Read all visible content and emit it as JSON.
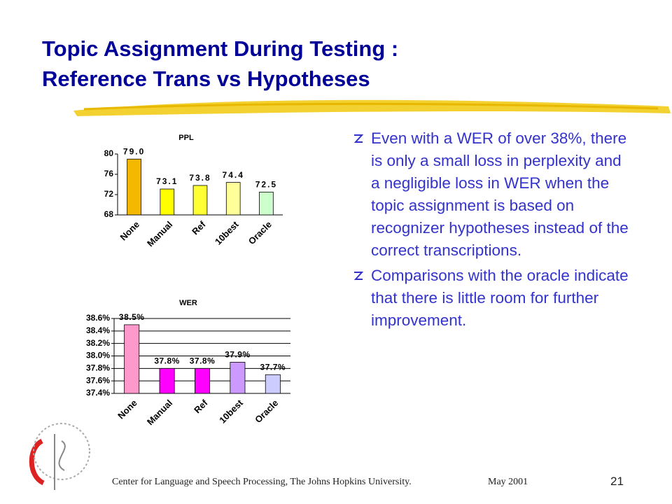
{
  "slide": {
    "title_lines": [
      "Topic Assignment During Testing :",
      "Reference Trans vs Hypotheses"
    ],
    "bullets": [
      "Even with a WER of over 38%, there is only a small loss in perplexity and a negligible loss in WER when the topic assignment is based on recognizer hypotheses instead of the correct transcriptions.",
      "Comparisons with the oracle indicate that there is little room for further improvement."
    ],
    "footer": {
      "affiliation": "Center for Language and Speech Processing, The Johns Hopkins University.",
      "date": "May 2001",
      "page": "21"
    }
  },
  "chart_data": [
    {
      "type": "bar",
      "title": "PPL",
      "categories": [
        "None",
        "Manual",
        "Ref",
        "10best",
        "Oracle"
      ],
      "values": [
        79.0,
        73.1,
        73.8,
        74.4,
        72.5
      ],
      "value_labels": [
        "79.0",
        "73.1",
        "73.8",
        "74.4",
        "72.5"
      ],
      "colors": [
        "#f5b800",
        "#ffff00",
        "#ffff33",
        "#ffff99",
        "#ccffcc"
      ],
      "ylim": [
        68,
        80
      ],
      "yticks": [
        68,
        72,
        76,
        80
      ],
      "grid": false
    },
    {
      "type": "bar",
      "title": "WER",
      "categories": [
        "None",
        "Manual",
        "Ref",
        "10best",
        "Oracle"
      ],
      "values": [
        38.5,
        37.8,
        37.8,
        37.9,
        37.7
      ],
      "value_labels": [
        "38.5%",
        "37.8%",
        "37.8%",
        "37.9%",
        "37.7%"
      ],
      "colors": [
        "#ff99cc",
        "#ff00ff",
        "#ff00ff",
        "#cc99ff",
        "#ccccff"
      ],
      "ylim": [
        37.4,
        38.6
      ],
      "yticks": [
        {
          "value": 37.4,
          "label": "37.4%"
        },
        {
          "value": 37.6,
          "label": "37.6%"
        },
        {
          "value": 37.8,
          "label": "37.8%"
        },
        {
          "value": 38.0,
          "label": "38.0%"
        },
        {
          "value": 38.2,
          "label": "38.2%"
        },
        {
          "value": 38.4,
          "label": "38.4%"
        },
        {
          "value": 38.6,
          "label": "38.6%"
        }
      ],
      "grid": true
    }
  ]
}
